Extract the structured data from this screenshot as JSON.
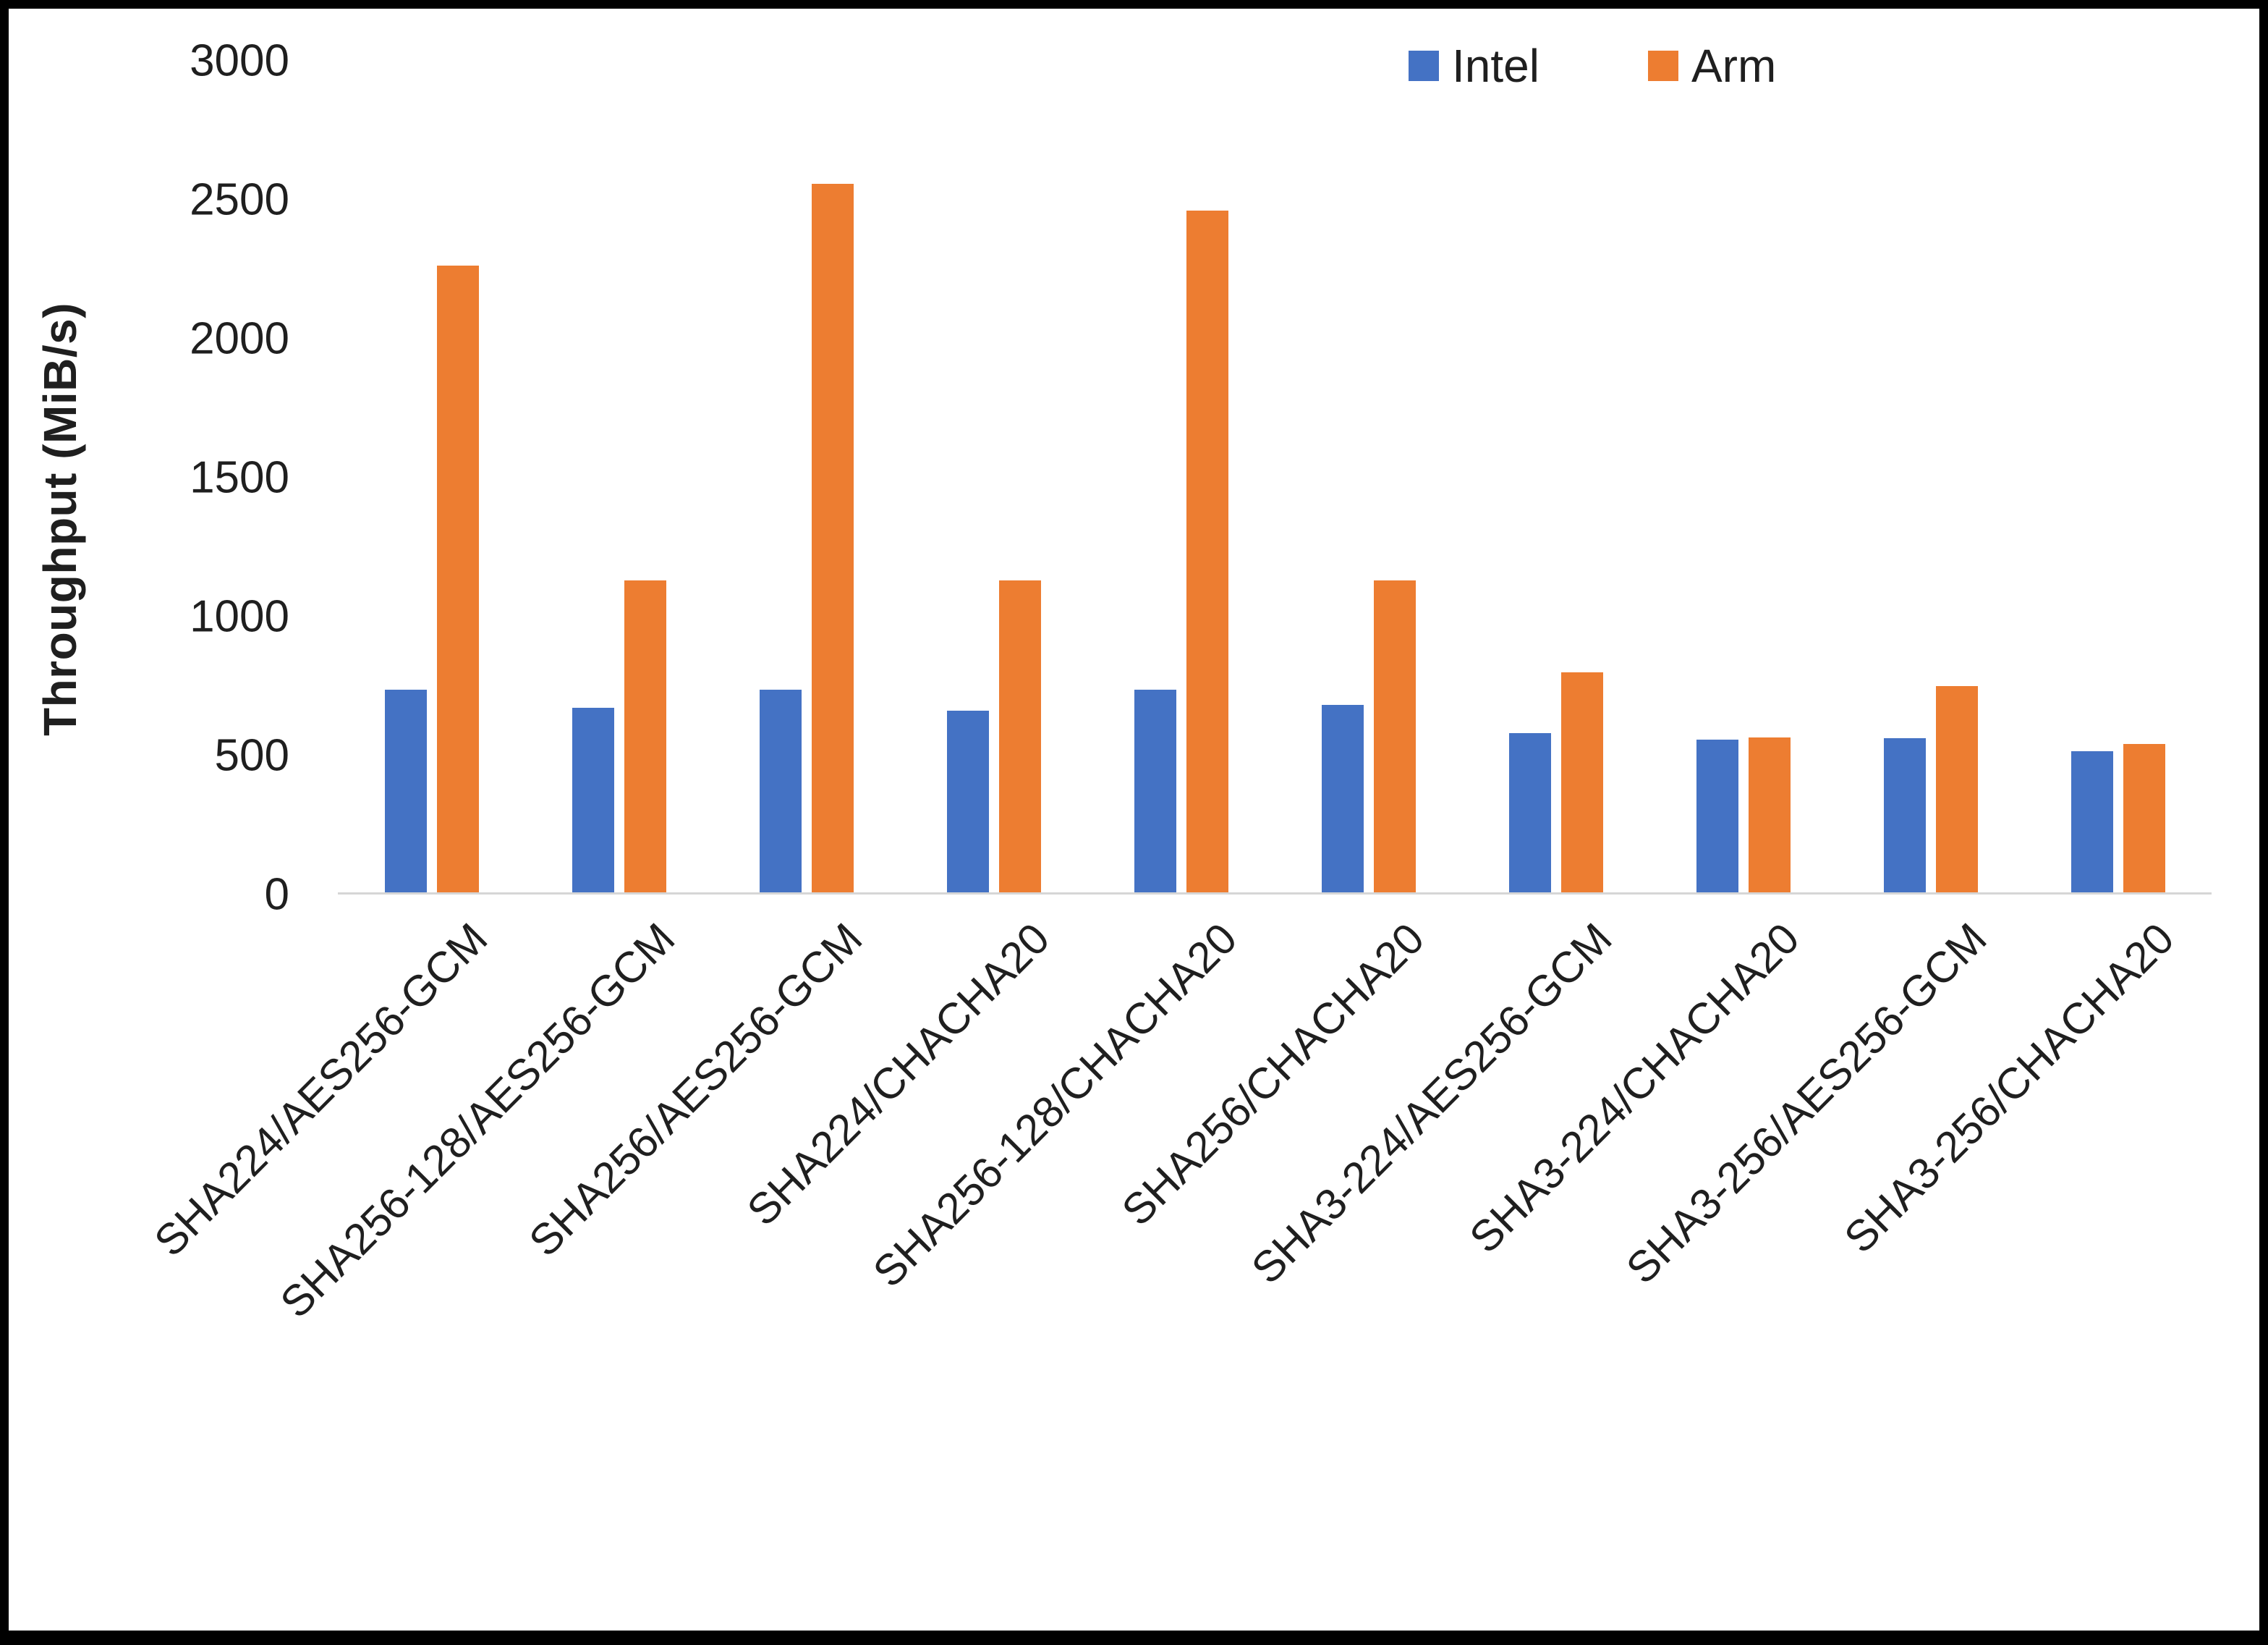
{
  "figure": {
    "background": "#ffffff",
    "frame_color": "#000000",
    "axis_line_color": "#d6d6d6"
  },
  "chart_data": {
    "type": "bar",
    "title": "",
    "xlabel": "",
    "ylabel": "Throughput (MiB/s)",
    "ylim": [
      0,
      3000
    ],
    "yticks": [
      0,
      500,
      1000,
      1500,
      2000,
      2500,
      3000
    ],
    "grid": false,
    "legend_position": "top-right",
    "categories": [
      "SHA224/AES256-GCM",
      "SHA256-128/AES256-GCM",
      "SHA256/AES256-GCM",
      "SHA224/CHACHA20",
      "SHA256-128/CHACHA20",
      "SHA256/CHACHA20",
      "SHA3-224/AES256-GCM",
      "SHA3-224/CHACHA20",
      "SHA3-256/AES256-GCM",
      "SHA3-256/CHACHA20"
    ],
    "series": [
      {
        "name": "Intel",
        "color": "#4472C4",
        "values": [
          730,
          665,
          730,
          655,
          730,
          675,
          575,
          550,
          555,
          510
        ]
      },
      {
        "name": "Arm",
        "color": "#ED7D31",
        "values": [
          2260,
          1125,
          2555,
          1125,
          2460,
          1125,
          795,
          560,
          745,
          535
        ]
      }
    ]
  }
}
